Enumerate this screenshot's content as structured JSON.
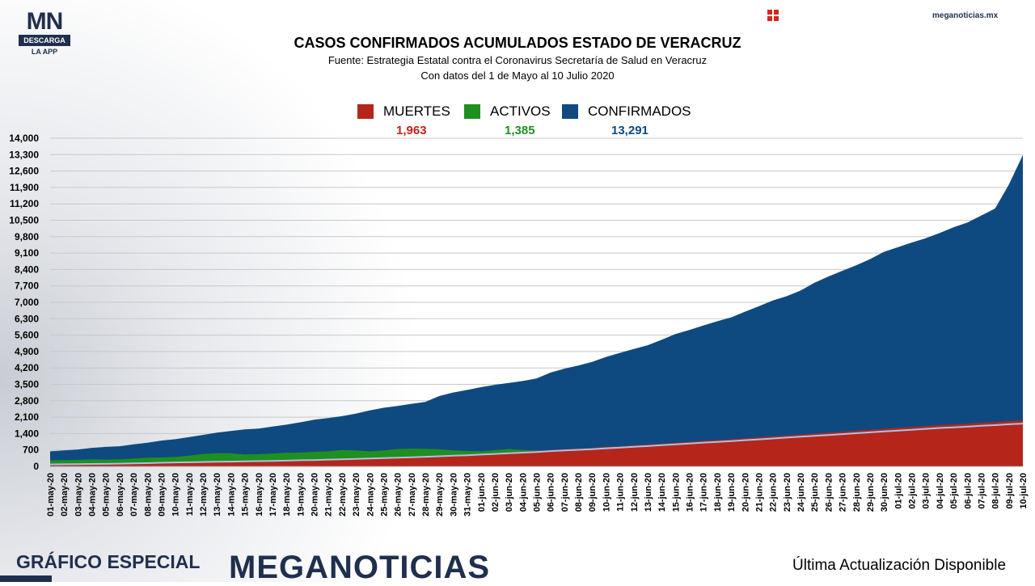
{
  "brand": {
    "logo_main": "MN",
    "logo_bar": "DESCARGA",
    "logo_sub": "LA APP",
    "site": "meganoticias.mx",
    "footer_left": "GRÁFICO ESPECIAL",
    "footer_brand": "MEGANOTICIAS",
    "footer_right": "Última Actualización Disponible"
  },
  "chart_data": {
    "type": "area",
    "title": "CASOS CONFIRMADOS ACUMULADOS ESTADO DE VERACRUZ",
    "subtitle_1": "Fuente: Estrategia Estatal contra el Coronavirus Secretaría de Salud en Veracruz",
    "subtitle_2": "Con datos del 1 de Mayo al 10 Julio 2020",
    "legend_position": "top-center",
    "grid": true,
    "ylim": [
      0,
      14000
    ],
    "yticks": [
      0,
      700,
      1400,
      2100,
      2800,
      3500,
      4200,
      4900,
      5600,
      6300,
      7000,
      7700,
      8400,
      9100,
      9800,
      10500,
      11200,
      11900,
      12600,
      13300,
      14000
    ],
    "ytick_labels": [
      "0",
      "700",
      "1,400",
      "2,100",
      "2,800",
      "3,500",
      "4,200",
      "4,900",
      "5,600",
      "6,300",
      "7,000",
      "7,700",
      "8,400",
      "9,100",
      "9,800",
      "10,500",
      "11,200",
      "11,900",
      "12,600",
      "13,300",
      "14,000"
    ],
    "categories": [
      "01-may-20",
      "02-may-20",
      "03-may-20",
      "04-may-20",
      "05-may-20",
      "06-may-20",
      "07-may-20",
      "08-may-20",
      "09-may-20",
      "10-may-20",
      "11-may-20",
      "12-may-20",
      "13-may-20",
      "14-may-20",
      "15-may-20",
      "16-may-20",
      "17-may-20",
      "18-may-20",
      "19-may-20",
      "20-may-20",
      "21-may-20",
      "22-may-20",
      "23-may-20",
      "24-may-20",
      "25-may-20",
      "26-may-20",
      "27-may-20",
      "28-may-20",
      "29-may-20",
      "30-may-20",
      "31-may-20",
      "01-jun-20",
      "02-jun-20",
      "03-jun-20",
      "04-jun-20",
      "05-jun-20",
      "06-jun-20",
      "07-jun-20",
      "08-jun-20",
      "09-jun-20",
      "10-jun-20",
      "11-jun-20",
      "12-jun-20",
      "13-jun-20",
      "14-jun-20",
      "15-jun-20",
      "16-jun-20",
      "17-jun-20",
      "18-jun-20",
      "19-jun-20",
      "20-jun-20",
      "21-jun-20",
      "22-jun-20",
      "23-jun-20",
      "24-jun-20",
      "25-jun-20",
      "26-jun-20",
      "27-jun-20",
      "28-jun-20",
      "29-jun-20",
      "30-jun-20",
      "01-jul-20",
      "02-jul-20",
      "03-jul-20",
      "04-jul-20",
      "05-jul-20",
      "06-jul-20",
      "07-jul-20",
      "08-jul-20",
      "09-jul-20",
      "10-jul-20"
    ],
    "series": [
      {
        "name": "CONFIRMADOS",
        "color": "#0e4a80",
        "latest": "13,291",
        "values": [
          640,
          680,
          720,
          790,
          830,
          860,
          940,
          1010,
          1100,
          1160,
          1250,
          1340,
          1440,
          1510,
          1580,
          1610,
          1700,
          1780,
          1880,
          1990,
          2060,
          2140,
          2250,
          2390,
          2500,
          2580,
          2670,
          2750,
          3000,
          3150,
          3260,
          3380,
          3480,
          3560,
          3640,
          3750,
          4000,
          4170,
          4300,
          4460,
          4670,
          4840,
          5010,
          5170,
          5400,
          5650,
          5820,
          6010,
          6190,
          6350,
          6600,
          6830,
          7080,
          7260,
          7500,
          7830,
          8100,
          8340,
          8580,
          8840,
          9150,
          9350,
          9550,
          9730,
          9950,
          10200,
          10400,
          10700,
          11000,
          12030,
          13291
        ]
      },
      {
        "name": "ACTIVOS",
        "color": "#1f8f1f",
        "latest": "1,385",
        "values": [
          260,
          270,
          280,
          300,
          290,
          300,
          330,
          370,
          380,
          400,
          460,
          530,
          560,
          560,
          510,
          520,
          550,
          580,
          590,
          620,
          640,
          700,
          680,
          640,
          680,
          740,
          760,
          750,
          730,
          680,
          660,
          640,
          690,
          740,
          700,
          680,
          670,
          680,
          700,
          720,
          760,
          800,
          830,
          860,
          890,
          920,
          940,
          980,
          1010,
          1040,
          1070,
          1100,
          1130,
          1150,
          1180,
          1200,
          1220,
          1240,
          1260,
          1270,
          1290,
          1300,
          1310,
          1320,
          1330,
          1340,
          1350,
          1360,
          1370,
          1380,
          1385
        ]
      },
      {
        "name": "MUERTES",
        "color": "#b5251a",
        "latest": "1,963",
        "values": [
          90,
          95,
          100,
          110,
          115,
          125,
          140,
          150,
          165,
          180,
          190,
          200,
          210,
          220,
          230,
          240,
          250,
          265,
          280,
          290,
          310,
          325,
          340,
          360,
          380,
          400,
          420,
          440,
          465,
          490,
          510,
          540,
          570,
          600,
          630,
          660,
          700,
          730,
          760,
          790,
          830,
          860,
          900,
          930,
          970,
          1010,
          1050,
          1090,
          1120,
          1160,
          1200,
          1240,
          1280,
          1320,
          1360,
          1400,
          1440,
          1480,
          1520,
          1560,
          1600,
          1640,
          1680,
          1720,
          1760,
          1790,
          1820,
          1860,
          1890,
          1930,
          1963
        ]
      }
    ]
  }
}
